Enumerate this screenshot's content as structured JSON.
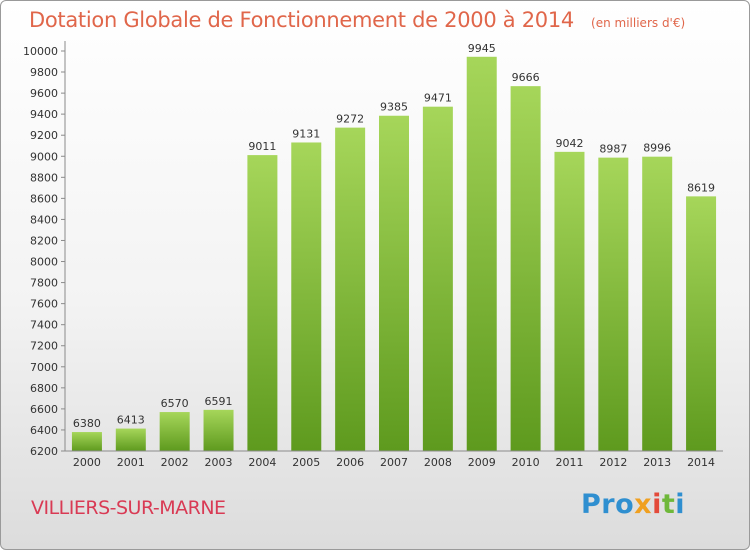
{
  "header": {
    "title": "Dotation Globale de Fonctionnement de 2000 à 2014",
    "subtitle": "(en milliers d'€)"
  },
  "footer": {
    "commune": "VILLIERS-SUR-MARNE",
    "logo": [
      "Pro",
      "x",
      "i",
      "t",
      "i"
    ]
  },
  "chart_data": {
    "type": "bar",
    "title": "Dotation Globale de Fonctionnement de 2000 à 2014",
    "subtitle": "(en milliers d'€)",
    "xlabel": "",
    "ylabel": "",
    "categories": [
      "2000",
      "2001",
      "2002",
      "2003",
      "2004",
      "2005",
      "2006",
      "2007",
      "2008",
      "2009",
      "2010",
      "2011",
      "2012",
      "2013",
      "2014"
    ],
    "values": [
      6380,
      6413,
      6570,
      6591,
      9011,
      9131,
      9272,
      9385,
      9471,
      9945,
      9666,
      9042,
      8987,
      8996,
      8619
    ],
    "ylim": [
      6200,
      10000
    ],
    "ytick_step": 200,
    "grid": false,
    "legend": "none",
    "colors": {
      "bar_top": "#a6d65a",
      "bar_bottom": "#5e9a1e",
      "title": "#e0664a",
      "commune": "#d93a54",
      "axis": "#8a8a8a",
      "text": "#333333"
    }
  }
}
